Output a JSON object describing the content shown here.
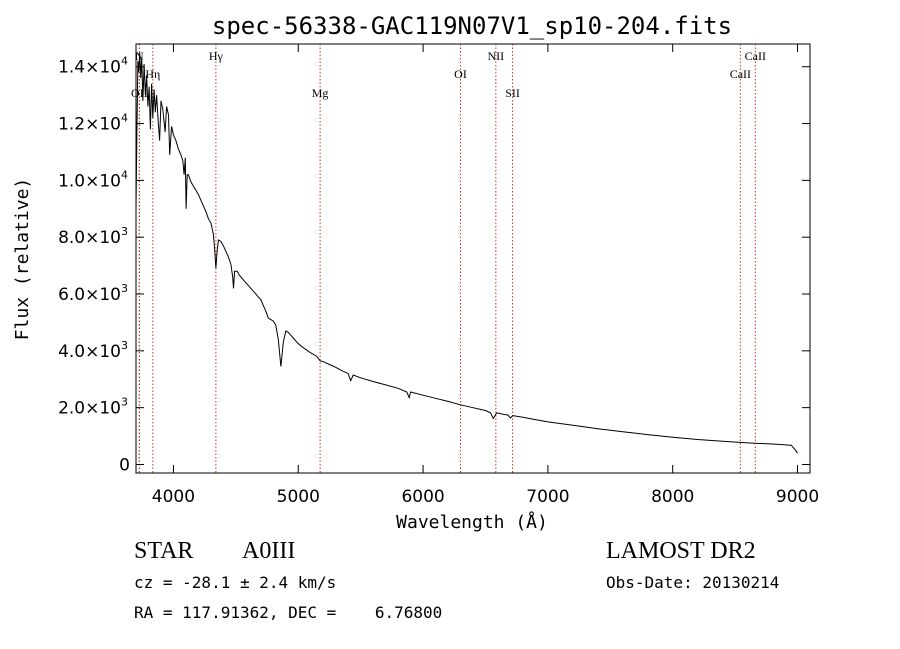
{
  "chart_data": {
    "type": "line",
    "title": "spec-56338-GAC119N07V1_sp10-204.fits",
    "xlabel": "Wavelength (Å)",
    "ylabel": "Flux (relative)",
    "xlim": [
      3700,
      9100
    ],
    "ylim": [
      -300,
      14800
    ],
    "grid": false,
    "x_ticks": [
      4000,
      5000,
      6000,
      7000,
      8000,
      9000
    ],
    "y_ticks": [
      {
        "value": 0,
        "mant": "0",
        "exp": ""
      },
      {
        "value": 2000,
        "mant": "2.0×10",
        "exp": "3"
      },
      {
        "value": 4000,
        "mant": "4.0×10",
        "exp": "3"
      },
      {
        "value": 6000,
        "mant": "6.0×10",
        "exp": "3"
      },
      {
        "value": 8000,
        "mant": "8.0×10",
        "exp": "3"
      },
      {
        "value": 10000,
        "mant": "1.0×10",
        "exp": "4"
      },
      {
        "value": 12000,
        "mant": "1.2×10",
        "exp": "4"
      },
      {
        "value": 14000,
        "mant": "1.4×10",
        "exp": "4"
      }
    ],
    "line_color": "#000000",
    "marker_color": "#c0392b",
    "lines": [
      {
        "name": "N",
        "x": 3727,
        "row": 0
      },
      {
        "name": "OII",
        "x": 3727,
        "row": 2
      },
      {
        "name": "Hη",
        "x": 3835,
        "row": 1
      },
      {
        "name": "Hγ",
        "x": 4340,
        "row": 0
      },
      {
        "name": "Mg",
        "x": 5175,
        "row": 2
      },
      {
        "name": "OI",
        "x": 6300,
        "row": 1
      },
      {
        "name": "NII",
        "x": 6583,
        "row": 0
      },
      {
        "name": "SII",
        "x": 6717,
        "row": 2
      },
      {
        "name": "CaII",
        "x": 8542,
        "row": 1
      },
      {
        "name": "CaII",
        "x": 8662,
        "row": 0
      }
    ],
    "spectrum": [
      [
        3700,
        9000
      ],
      [
        3708,
        12000
      ],
      [
        3715,
        14200
      ],
      [
        3722,
        13800
      ],
      [
        3730,
        14500
      ],
      [
        3738,
        13600
      ],
      [
        3746,
        14300
      ],
      [
        3755,
        12800
      ],
      [
        3765,
        14100
      ],
      [
        3775,
        13000
      ],
      [
        3785,
        13700
      ],
      [
        3795,
        12600
      ],
      [
        3805,
        13300
      ],
      [
        3815,
        11800
      ],
      [
        3825,
        13400
      ],
      [
        3835,
        12200
      ],
      [
        3845,
        13200
      ],
      [
        3855,
        12400
      ],
      [
        3865,
        13000
      ],
      [
        3875,
        12300
      ],
      [
        3889,
        11400
      ],
      [
        3900,
        12800
      ],
      [
        3915,
        12500
      ],
      [
        3933,
        11700
      ],
      [
        3945,
        12600
      ],
      [
        3960,
        12300
      ],
      [
        3970,
        10900
      ],
      [
        3985,
        11900
      ],
      [
        4000,
        11600
      ],
      [
        4020,
        11400
      ],
      [
        4040,
        11100
      ],
      [
        4060,
        10900
      ],
      [
        4075,
        10700
      ],
      [
        4085,
        10200
      ],
      [
        4095,
        10800
      ],
      [
        4101,
        9000
      ],
      [
        4110,
        10200
      ],
      [
        4120,
        10200
      ],
      [
        4140,
        9950
      ],
      [
        4160,
        9800
      ],
      [
        4180,
        9650
      ],
      [
        4200,
        9500
      ],
      [
        4220,
        9300
      ],
      [
        4240,
        9100
      ],
      [
        4260,
        8900
      ],
      [
        4280,
        8650
      ],
      [
        4300,
        8500
      ],
      [
        4320,
        8100
      ],
      [
        4330,
        7600
      ],
      [
        4340,
        6900
      ],
      [
        4350,
        7500
      ],
      [
        4360,
        7900
      ],
      [
        4380,
        7850
      ],
      [
        4400,
        7700
      ],
      [
        4420,
        7500
      ],
      [
        4440,
        7300
      ],
      [
        4460,
        7050
      ],
      [
        4475,
        6600
      ],
      [
        4481,
        6200
      ],
      [
        4490,
        6800
      ],
      [
        4510,
        6800
      ],
      [
        4530,
        6650
      ],
      [
        4560,
        6500
      ],
      [
        4590,
        6350
      ],
      [
        4620,
        6200
      ],
      [
        4650,
        6050
      ],
      [
        4680,
        5900
      ],
      [
        4700,
        5800
      ],
      [
        4720,
        5600
      ],
      [
        4740,
        5400
      ],
      [
        4760,
        5150
      ],
      [
        4780,
        5100
      ],
      [
        4800,
        5050
      ],
      [
        4820,
        4900
      ],
      [
        4840,
        4400
      ],
      [
        4861,
        3450
      ],
      [
        4880,
        4300
      ],
      [
        4900,
        4700
      ],
      [
        4920,
        4650
      ],
      [
        4940,
        4550
      ],
      [
        4960,
        4450
      ],
      [
        4980,
        4350
      ],
      [
        5000,
        4250
      ],
      [
        5050,
        4080
      ],
      [
        5100,
        3930
      ],
      [
        5150,
        3800
      ],
      [
        5175,
        3650
      ],
      [
        5200,
        3620
      ],
      [
        5250,
        3520
      ],
      [
        5300,
        3420
      ],
      [
        5350,
        3300
      ],
      [
        5400,
        3200
      ],
      [
        5420,
        2950
      ],
      [
        5440,
        3150
      ],
      [
        5500,
        3050
      ],
      [
        5600,
        2920
      ],
      [
        5700,
        2800
      ],
      [
        5800,
        2680
      ],
      [
        5870,
        2550
      ],
      [
        5889,
        2350
      ],
      [
        5900,
        2550
      ],
      [
        6000,
        2440
      ],
      [
        6100,
        2330
      ],
      [
        6200,
        2220
      ],
      [
        6300,
        2100
      ],
      [
        6400,
        2000
      ],
      [
        6500,
        1900
      ],
      [
        6540,
        1820
      ],
      [
        6563,
        1620
      ],
      [
        6590,
        1820
      ],
      [
        6650,
        1760
      ],
      [
        6680,
        1740
      ],
      [
        6700,
        1640
      ],
      [
        6720,
        1720
      ],
      [
        6800,
        1660
      ],
      [
        6900,
        1580
      ],
      [
        7000,
        1500
      ],
      [
        7200,
        1380
      ],
      [
        7400,
        1260
      ],
      [
        7600,
        1150
      ],
      [
        7800,
        1050
      ],
      [
        8000,
        960
      ],
      [
        8200,
        880
      ],
      [
        8400,
        820
      ],
      [
        8600,
        760
      ],
      [
        8800,
        720
      ],
      [
        8950,
        680
      ],
      [
        8985,
        500
      ],
      [
        9000,
        400
      ]
    ]
  },
  "info": {
    "obj_class": "STAR",
    "subclass": "A0III",
    "survey": "LAMOST DR2",
    "cz": "cz = -28.1 ± 2.4 km/s",
    "obs_date": "Obs-Date: 20130214",
    "coords": "RA = 117.91362, DEC =    6.76800"
  }
}
